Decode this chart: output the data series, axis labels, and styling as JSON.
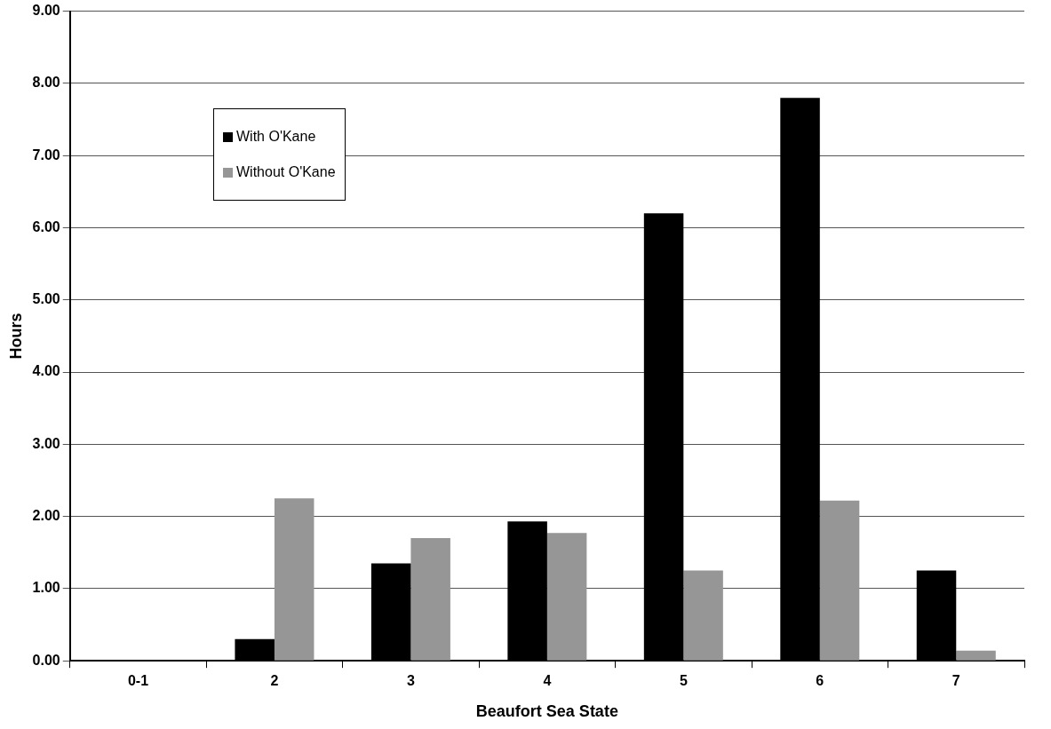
{
  "chart_data": {
    "type": "bar",
    "xlabel": "Beaufort Sea State",
    "ylabel": "Hours",
    "categories": [
      "0-1",
      "2",
      "3",
      "4",
      "5",
      "6",
      "7"
    ],
    "series": [
      {
        "name": "With O'Kane",
        "color": "#000000",
        "values": [
          0,
          0.3,
          1.35,
          1.93,
          6.2,
          7.8,
          1.25
        ]
      },
      {
        "name": "Without O'Kane",
        "color": "#969696",
        "values": [
          0,
          2.25,
          1.7,
          1.77,
          1.25,
          2.22,
          0.14
        ]
      }
    ],
    "ylim": [
      0,
      9
    ],
    "yticks": [
      {
        "value": 0,
        "label": "0.00"
      },
      {
        "value": 1,
        "label": "1.00"
      },
      {
        "value": 2,
        "label": "2.00"
      },
      {
        "value": 3,
        "label": "3.00"
      },
      {
        "value": 4,
        "label": "4.00"
      },
      {
        "value": 5,
        "label": "5.00"
      },
      {
        "value": 6,
        "label": "6.00"
      },
      {
        "value": 7,
        "label": "7.00"
      },
      {
        "value": 8,
        "label": "8.00"
      },
      {
        "value": 9,
        "label": "9.00"
      }
    ],
    "grid": "y",
    "legend": "top left"
  }
}
